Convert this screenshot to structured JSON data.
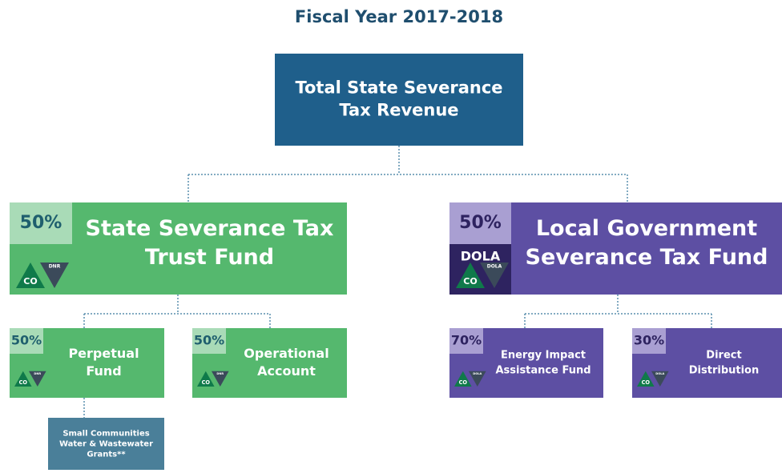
{
  "title": "Fiscal Year 2017-2018",
  "nodes": [
    {
      "label": [
        "Total State Severance",
        "Tax Revenue"
      ]
    },
    {
      "percent": "50%",
      "label": [
        "State Severance Tax",
        "Trust Fund"
      ],
      "logo": [
        "CO",
        "DNR"
      ]
    },
    {
      "percent": "50%",
      "label": [
        "Local Government",
        "Severance Tax Fund"
      ],
      "agency": "DOLA",
      "logo": [
        "CO",
        "DOLA"
      ]
    },
    {
      "percent": "50%",
      "label": [
        "Perpetual",
        "Fund"
      ],
      "logo": [
        "CO",
        "DNR"
      ]
    },
    {
      "percent": "50%",
      "label": [
        "Operational",
        "Account"
      ],
      "logo": [
        "CO",
        "DNR"
      ]
    },
    {
      "percent": "70%",
      "label": [
        "Energy Impact",
        "Assistance Fund"
      ],
      "logo": [
        "CO",
        "DOLA"
      ]
    },
    {
      "percent": "30%",
      "label": [
        "Direct",
        "Distribution"
      ],
      "logo": [
        "CO",
        "DOLA"
      ]
    },
    {
      "label": [
        "Small Communities",
        "Water & Wastewater",
        "Grants**"
      ]
    }
  ]
}
